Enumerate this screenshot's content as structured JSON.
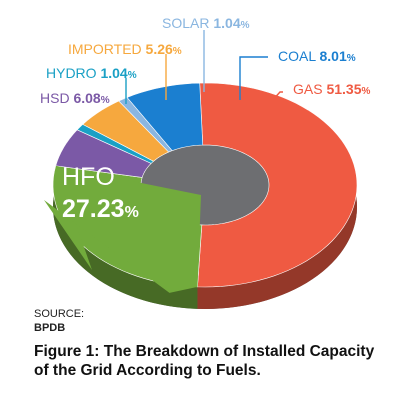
{
  "chart_data": {
    "type": "pie",
    "style": "3d-donut",
    "categories": [
      "GAS",
      "HFO",
      "HSD",
      "HYDRO",
      "IMPORTED",
      "SOLAR",
      "COAL"
    ],
    "values": [
      51.35,
      27.23,
      6.08,
      1.04,
      5.26,
      1.04,
      8.01
    ],
    "unit": "%",
    "colors": [
      "#ef5a42",
      "#72ab3c",
      "#7b59a6",
      "#1aa0c5",
      "#f6a83e",
      "#8ab6e0",
      "#1b7fd0"
    ],
    "label_colors": [
      "#ef5a42",
      "#ffffff",
      "#7b59a6",
      "#1aa0c5",
      "#f6a83e",
      "#8ab6e0",
      "#1b7fd0"
    ],
    "value_labels": [
      "51.35",
      "27.23",
      "6.08",
      "1.04",
      "5.26",
      "1.04",
      "8.01"
    ]
  },
  "source": {
    "label": "SOURCE:",
    "name": "BPDB"
  },
  "caption": "Figure 1: The Breakdown of Installed Capacity of the Grid According to Fuels."
}
